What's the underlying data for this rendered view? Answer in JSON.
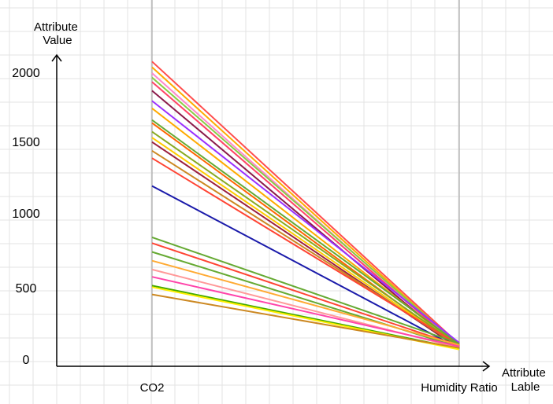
{
  "chart_data": {
    "type": "line",
    "subtype": "parallel-coordinates",
    "categories": [
      "CO2",
      "Humidity Ratio"
    ],
    "ylabel": [
      "Attribute",
      "Value"
    ],
    "xlabel": [
      "Attribute",
      "Lable"
    ],
    "ylim": [
      0,
      2100
    ],
    "yticks": [
      0,
      500,
      1000,
      1500,
      2000
    ],
    "grid": true,
    "legend": "none",
    "series": [
      {
        "values": [
          2079,
          150
        ],
        "color": "#ff4d4d"
      },
      {
        "values": [
          2040,
          140
        ],
        "color": "#ffaa00"
      },
      {
        "values": [
          2000,
          130
        ],
        "color": "#ff88cc"
      },
      {
        "values": [
          1970,
          145
        ],
        "color": "#88cc44"
      },
      {
        "values": [
          1940,
          130
        ],
        "color": "#ff4466"
      },
      {
        "values": [
          1880,
          120
        ],
        "color": "#8b1a4a"
      },
      {
        "values": [
          1810,
          160
        ],
        "color": "#9b30ff"
      },
      {
        "values": [
          1760,
          135
        ],
        "color": "#ffaa00"
      },
      {
        "values": [
          1680,
          150
        ],
        "color": "#66aa33"
      },
      {
        "values": [
          1660,
          125
        ],
        "color": "#ff6600"
      },
      {
        "values": [
          1600,
          140
        ],
        "color": "#88aa22"
      },
      {
        "values": [
          1560,
          130
        ],
        "color": "#ffcc00"
      },
      {
        "values": [
          1530,
          120
        ],
        "color": "#9b2040"
      },
      {
        "values": [
          1470,
          135
        ],
        "color": "#cc8822"
      },
      {
        "values": [
          1420,
          145
        ],
        "color": "#ff4433"
      },
      {
        "values": [
          1230,
          120
        ],
        "color": "#1a1aaa"
      },
      {
        "values": [
          880,
          155
        ],
        "color": "#66aa33"
      },
      {
        "values": [
          840,
          140
        ],
        "color": "#ff4433"
      },
      {
        "values": [
          780,
          130
        ],
        "color": "#66aa33"
      },
      {
        "values": [
          720,
          145
        ],
        "color": "#ffaa33"
      },
      {
        "values": [
          660,
          125
        ],
        "color": "#ff9999"
      },
      {
        "values": [
          610,
          135
        ],
        "color": "#ff44aa"
      },
      {
        "values": [
          550,
          120
        ],
        "color": "#44aa00"
      },
      {
        "values": [
          540,
          115
        ],
        "color": "#ffee00"
      },
      {
        "values": [
          490,
          125
        ],
        "color": "#cc8822"
      }
    ]
  }
}
